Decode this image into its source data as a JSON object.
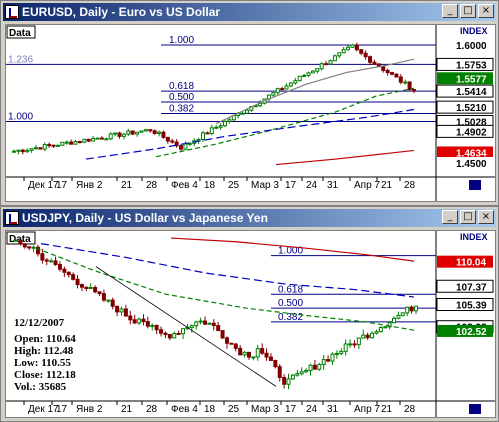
{
  "windows": [
    {
      "title": "EURUSD, Daily - Euro vs US Dollar",
      "data_label": "Data",
      "index_label": "INDEX",
      "price_labels": [
        {
          "text": "1.6000",
          "value": 1.6,
          "style": "plain"
        },
        {
          "text": "1.5753",
          "value": 1.5753,
          "style": "box"
        },
        {
          "text": "1.5577",
          "value": 1.5577,
          "style": "green"
        },
        {
          "text": "1.5414",
          "value": 1.5414,
          "style": "box"
        },
        {
          "text": "1.5210",
          "value": 1.521,
          "style": "box"
        },
        {
          "text": "1.5028",
          "value": 1.5028,
          "style": "box"
        },
        {
          "text": "1.4902",
          "value": 1.4902,
          "style": "box"
        },
        {
          "text": "1.4634",
          "value": 1.4634,
          "style": "red"
        },
        {
          "text": "1.4500",
          "value": 1.45,
          "style": "plain"
        }
      ],
      "fib_labels": [
        "1.000",
        "1.236",
        "0.618",
        "0.500",
        "0.382",
        "1.000"
      ],
      "x_labels": [
        "Дек 17",
        "17",
        "Янв 2",
        "21",
        "28",
        "Фев 4",
        "18",
        "25",
        "Мар 3",
        "17",
        "24",
        "31",
        "Апр 7",
        "21",
        "28"
      ]
    },
    {
      "title": "USDJPY, Daily - US Dollar vs Japanese Yen",
      "data_label": "Data",
      "index_label": "INDEX",
      "price_labels": [
        {
          "text": "110.04",
          "value": 110.04,
          "style": "red"
        },
        {
          "text": "107.37",
          "value": 107.37,
          "style": "box"
        },
        {
          "text": "105.39",
          "value": 105.39,
          "style": "box"
        },
        {
          "text": "102.98",
          "value": 102.98,
          "style": "box"
        },
        {
          "text": "102.52",
          "value": 102.52,
          "style": "green"
        }
      ],
      "fib_labels": [
        "1.000",
        "0.618",
        "0.500",
        "0.382"
      ],
      "info": {
        "date": "12/12/2007",
        "open": "Open: 110.64",
        "high": "High: 112.48",
        "low": "Low: 110.55",
        "close": "Close: 112.18",
        "vol": "Vol.: 35685"
      },
      "x_labels": [
        "Дек 17",
        "17",
        "Янв 2",
        "21",
        "28",
        "Фев 4",
        "18",
        "25",
        "Мар 3",
        "17",
        "24",
        "31",
        "Апр 7",
        "21",
        "28"
      ]
    }
  ],
  "colors": {
    "bull": "#008000",
    "bear": "#800000",
    "fib": "#000080",
    "ma_green": "#008000",
    "ma_blue": "#0000c0",
    "ma_red": "#c00000"
  }
}
